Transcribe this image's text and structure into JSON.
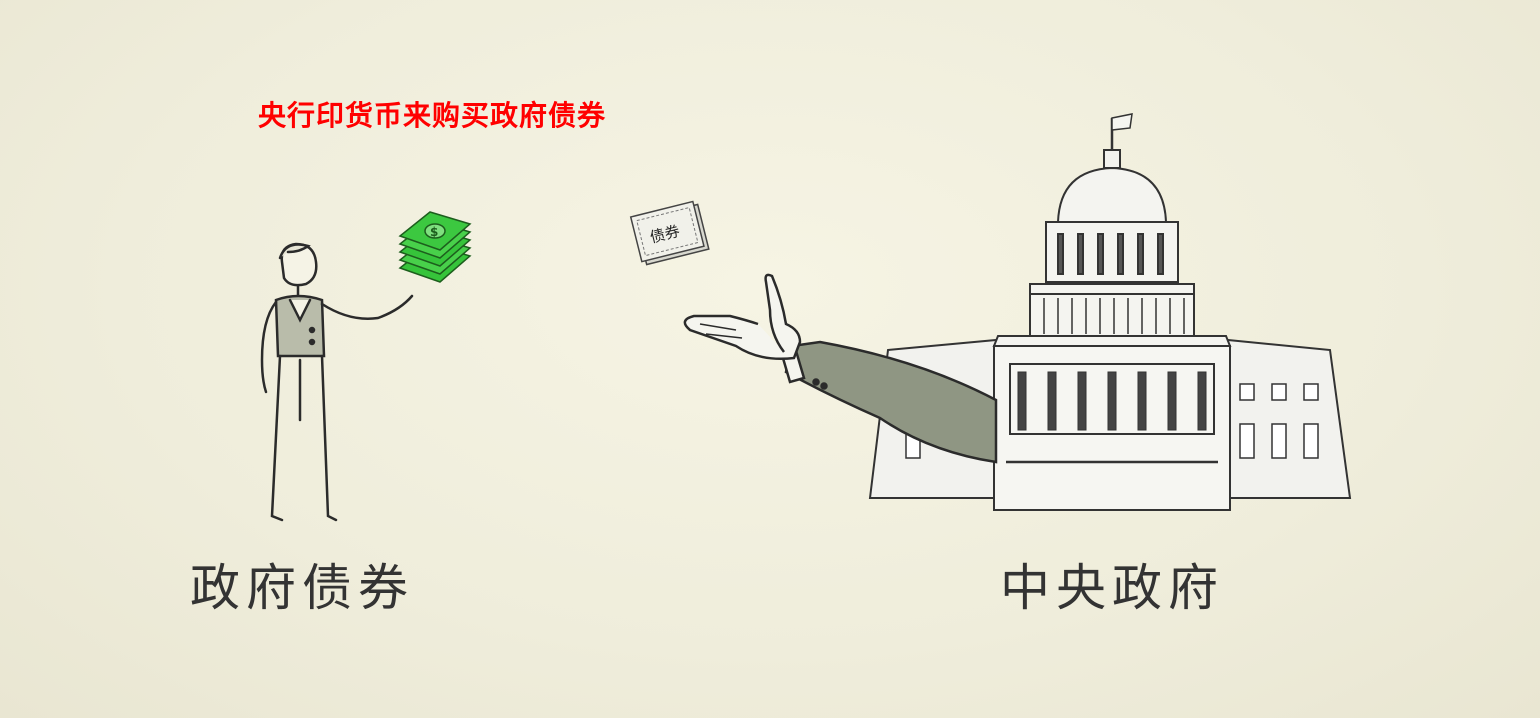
{
  "caption": "央行印货币来购买政府债券",
  "left_label": "政府债券",
  "right_label": "中央政府",
  "bond_text": "债券",
  "money_symbol": "$",
  "colors": {
    "caption": "#ff0000",
    "label": "#333333",
    "money": "#2ecc40",
    "background": "#f2f0dd"
  }
}
